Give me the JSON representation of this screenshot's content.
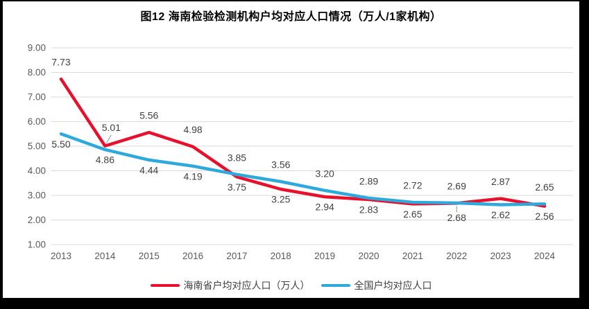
{
  "title": "图12  海南检验检测机构户均对应人口情况（万人/1家机构）",
  "chart_data": {
    "type": "line",
    "title": "图12  海南检验检测机构户均对应人口情况（万人/1家机构）",
    "categories": [
      "2013",
      "2014",
      "2015",
      "2016",
      "2017",
      "2018",
      "2019",
      "2020",
      "2021",
      "2022",
      "2023",
      "2024"
    ],
    "series": [
      {
        "name": "海南省户均对应人口（万人）",
        "color": "#E8112D",
        "values": [
          7.73,
          5.01,
          5.56,
          4.98,
          3.75,
          3.25,
          2.94,
          2.83,
          2.65,
          2.68,
          2.87,
          2.56
        ]
      },
      {
        "name": "全国户均对应人口",
        "color": "#2DA9DC",
        "values": [
          5.5,
          4.86,
          4.44,
          4.19,
          3.85,
          3.56,
          3.2,
          2.89,
          2.72,
          2.69,
          2.62,
          2.65
        ]
      }
    ],
    "ylim": [
      1.0,
      9.0
    ],
    "ytick_step": 1.0,
    "y_tick_labels": [
      "9.00",
      "8.00",
      "7.00",
      "6.00",
      "5.00",
      "4.00",
      "3.00",
      "2.00",
      "1.00"
    ],
    "grid": true,
    "data_labels": true,
    "legend_position": "bottom",
    "callouts": [
      {
        "series": 0,
        "index": 1,
        "placement": "above-right-leader"
      },
      {
        "series": 0,
        "index": 9,
        "placement": "below-leader"
      }
    ],
    "colors": {
      "grid": "#D9D9D9",
      "axis_text": "#595959",
      "data_label_text": "#404040",
      "leader_line": "#A6A6A6",
      "background": "#FFFFFF",
      "frame": "#000000"
    }
  }
}
